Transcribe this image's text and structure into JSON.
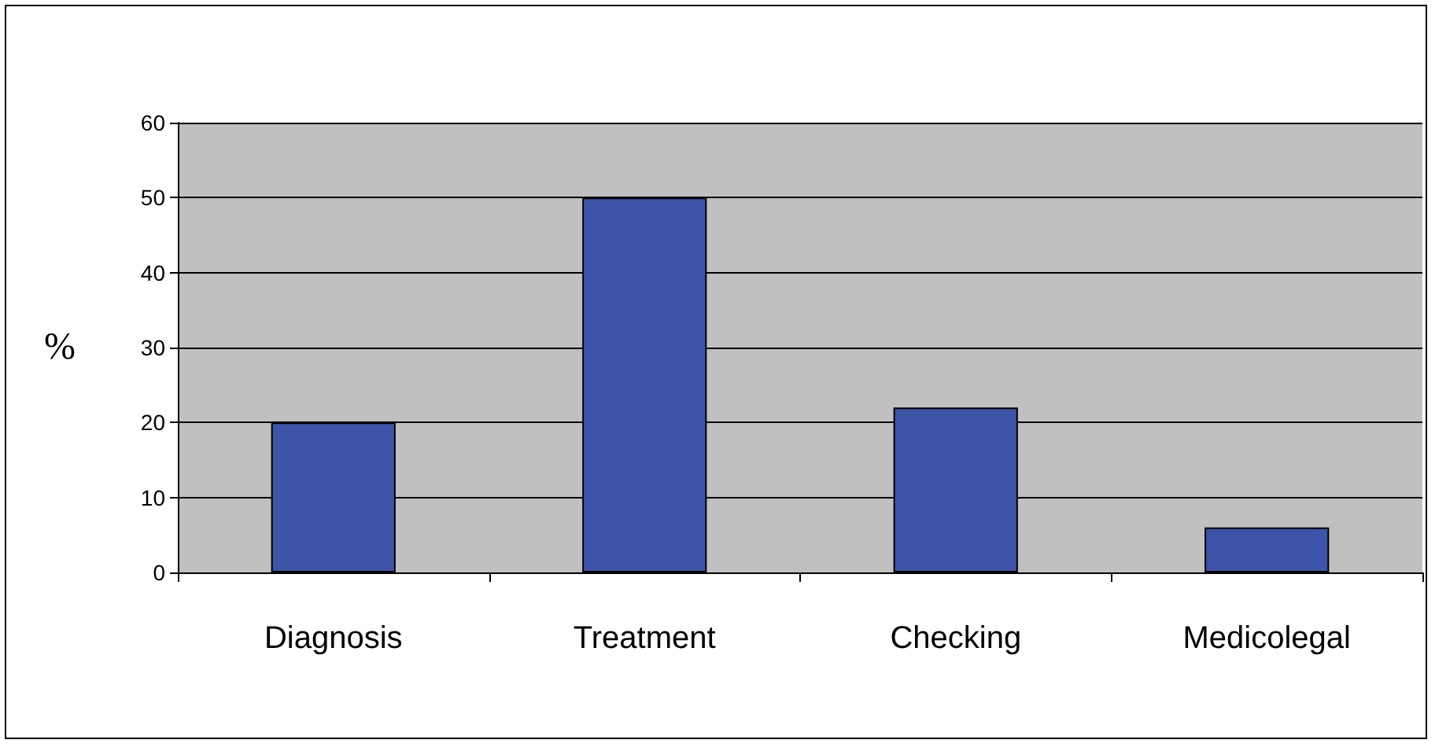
{
  "chart_data": {
    "type": "bar",
    "ylabel": "%",
    "categories": [
      "Diagnosis",
      "Treatment",
      "Checking",
      "Medicolegal"
    ],
    "values": [
      20,
      50,
      22,
      6
    ],
    "color": "#3c55a8",
    "ylim": [
      0,
      60
    ],
    "yticks": [
      0,
      10,
      20,
      30,
      40,
      50,
      60
    ],
    "grid": "y"
  }
}
